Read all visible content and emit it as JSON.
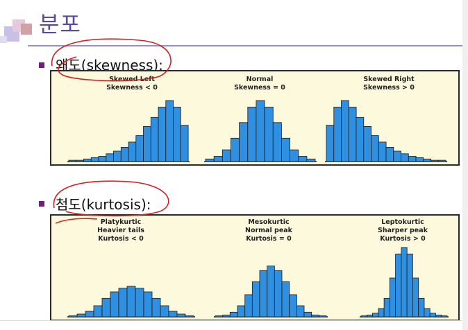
{
  "slide": {
    "title": "분포",
    "accent_color": "#5c4a9a",
    "ink_color": "#d21f1f",
    "bar_color": "#2f8fe0"
  },
  "skewness": {
    "heading": "왜도(skewness):",
    "panels": [
      {
        "name": "Skewed Left",
        "detail": "Skewness < 0",
        "bars": [
          1,
          1,
          2,
          3,
          4,
          6,
          8,
          11,
          15,
          20,
          27,
          34,
          42,
          47,
          42,
          28
        ]
      },
      {
        "name": "Normal",
        "detail": "Skewness = 0",
        "bars": [
          2,
          4,
          9,
          18,
          30,
          42,
          47,
          42,
          30,
          18,
          9,
          4,
          2
        ]
      },
      {
        "name": "Skewed Right",
        "detail": "Skewness > 0",
        "bars": [
          28,
          42,
          47,
          42,
          34,
          27,
          20,
          15,
          11,
          8,
          6,
          4,
          3,
          2,
          1,
          1
        ]
      }
    ]
  },
  "kurtosis": {
    "heading": "첨도(kurtosis):",
    "panels": [
      {
        "name": "Platykurtic",
        "detail1": "Heavier tails",
        "detail2": "Kurtosis < 0",
        "bars": [
          1,
          3,
          6,
          12,
          20,
          27,
          31,
          33,
          31,
          27,
          20,
          12,
          6,
          3,
          1
        ]
      },
      {
        "name": "Mesokurtic",
        "detail1": "Normal peak",
        "detail2": "Kurtosis = 0",
        "bars": [
          1,
          2,
          5,
          12,
          24,
          38,
          50,
          55,
          50,
          38,
          24,
          12,
          5,
          2,
          1
        ]
      },
      {
        "name": "Leptokurtic",
        "detail1": "Sharper peak",
        "detail2": "Kurtosis > 0",
        "bars": [
          1,
          2,
          4,
          9,
          20,
          42,
          68,
          75,
          68,
          42,
          20,
          9,
          4,
          2,
          1
        ]
      }
    ]
  }
}
